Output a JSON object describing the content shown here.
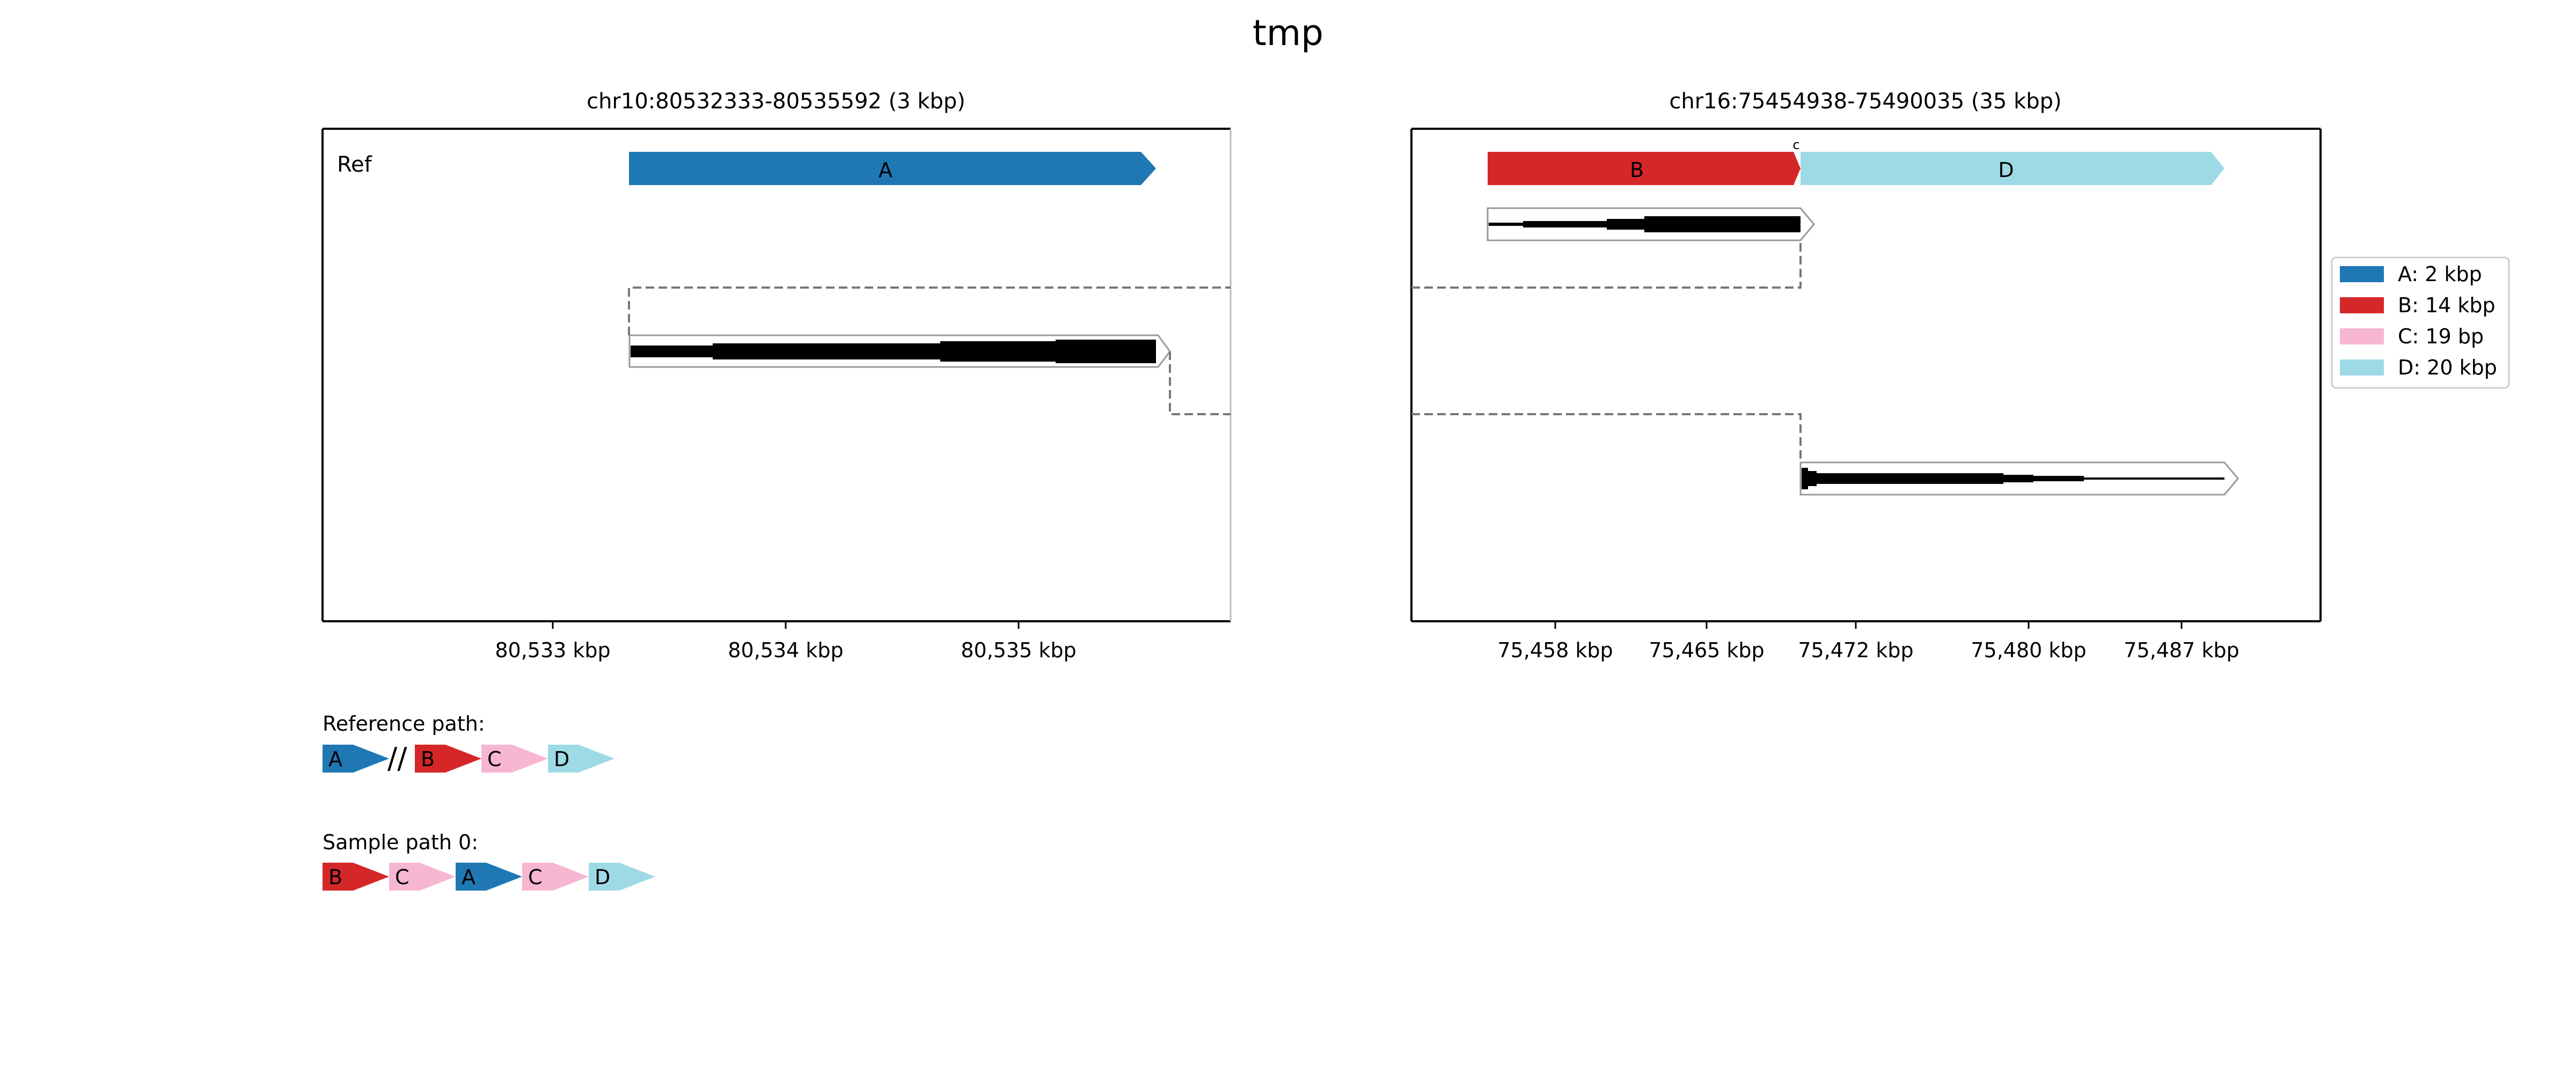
{
  "figure_title": "tmp",
  "panels": [
    {
      "title": "chr10:80532333-80535592 (3 kbp)",
      "row_label": "Ref",
      "ticks": [
        "80,533 kbp",
        "80,534 kbp",
        "80,535 kbp"
      ],
      "blocks": [
        {
          "label": "A",
          "color": "#1f77b4"
        }
      ]
    },
    {
      "title": "chr16:75454938-75490035 (35 kbp)",
      "row_label": "",
      "ticks": [
        "75,458 kbp",
        "75,465 kbp",
        "75,472 kbp",
        "75,480 kbp",
        "75,487 kbp"
      ],
      "blocks": [
        {
          "label": "B",
          "color": "#d62728"
        },
        {
          "label": "D",
          "color": "#9edae5"
        }
      ],
      "marker": "c"
    }
  ],
  "legend": [
    {
      "label": "A: 2 kbp",
      "color": "#1f77b4"
    },
    {
      "label": "B: 14 kbp",
      "color": "#d62728"
    },
    {
      "label": "C: 19 bp",
      "color": "#f7b6d2"
    },
    {
      "label": "D: 20 kbp",
      "color": "#9edae5"
    }
  ],
  "reference_path": {
    "label": "Reference path:",
    "items": [
      {
        "label": "A",
        "color": "#1f77b4"
      },
      {
        "label": "//",
        "color": ""
      },
      {
        "label": "B",
        "color": "#d62728"
      },
      {
        "label": "C",
        "color": "#f7b6d2"
      },
      {
        "label": "D",
        "color": "#9edae5"
      }
    ]
  },
  "sample_path": {
    "label": "Sample path 0:",
    "items": [
      {
        "label": "B",
        "color": "#d62728"
      },
      {
        "label": "C",
        "color": "#f7b6d2"
      },
      {
        "label": "A",
        "color": "#1f77b4"
      },
      {
        "label": "C",
        "color": "#f7b6d2"
      },
      {
        "label": "D",
        "color": "#9edae5"
      }
    ]
  }
}
